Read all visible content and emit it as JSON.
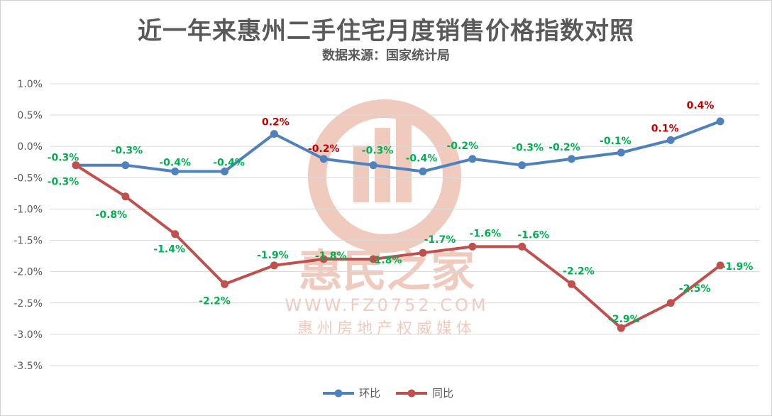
{
  "chart_data": {
    "type": "line",
    "title": "近一年来惠州二手住宅月度销售价格指数对照",
    "subtitle": "数据来源：国家统计局",
    "ylim": [
      -3.5,
      1.0
    ],
    "y_ticks": [
      "1.0%",
      "0.5%",
      "0.0%",
      "-0.5%",
      "-1.0%",
      "-1.5%",
      "-2.0%",
      "-2.5%",
      "-3.0%",
      "-3.5%"
    ],
    "grid": true,
    "legend_position": "bottom",
    "series": [
      {
        "name": "环比",
        "color": "#4f81bd",
        "values": [
          -0.3,
          -0.3,
          -0.4,
          -0.4,
          0.2,
          -0.2,
          -0.3,
          -0.4,
          -0.2,
          -0.3,
          -0.2,
          -0.1,
          0.1,
          0.4
        ],
        "labels": [
          "-0.3%",
          "-0.3%",
          "-0.4%",
          "-0.4%",
          "0.2%",
          "-0.2%",
          "-0.3%",
          "-0.4%",
          "-0.2%",
          "-0.3%",
          "-0.2%",
          "-0.1%",
          "0.1%",
          "0.4%"
        ]
      },
      {
        "name": "同比",
        "color": "#c0504d",
        "values": [
          -0.3,
          -0.8,
          -1.4,
          -2.2,
          -1.9,
          -1.8,
          -1.8,
          -1.7,
          -1.6,
          -1.6,
          -2.2,
          -2.9,
          -2.5,
          -1.9
        ],
        "labels": [
          "-0.3%",
          "-0.8%",
          "-1.4%",
          "-2.2%",
          "-1.9%",
          "-1.8%",
          "-1.8%",
          "-1.7%",
          "-1.6%",
          "-1.6%",
          "-2.2%",
          "-2.9%",
          "-2.5%",
          "-1.9%"
        ]
      }
    ],
    "label_colors": {
      "positive": "#c00000",
      "negative": "#00b050"
    }
  },
  "watermark": {
    "brand": "惠民之家",
    "url": "WWW.FZ0752.COM",
    "tagline": "惠州房地产权威媒体",
    "color": "#e7a08a"
  }
}
